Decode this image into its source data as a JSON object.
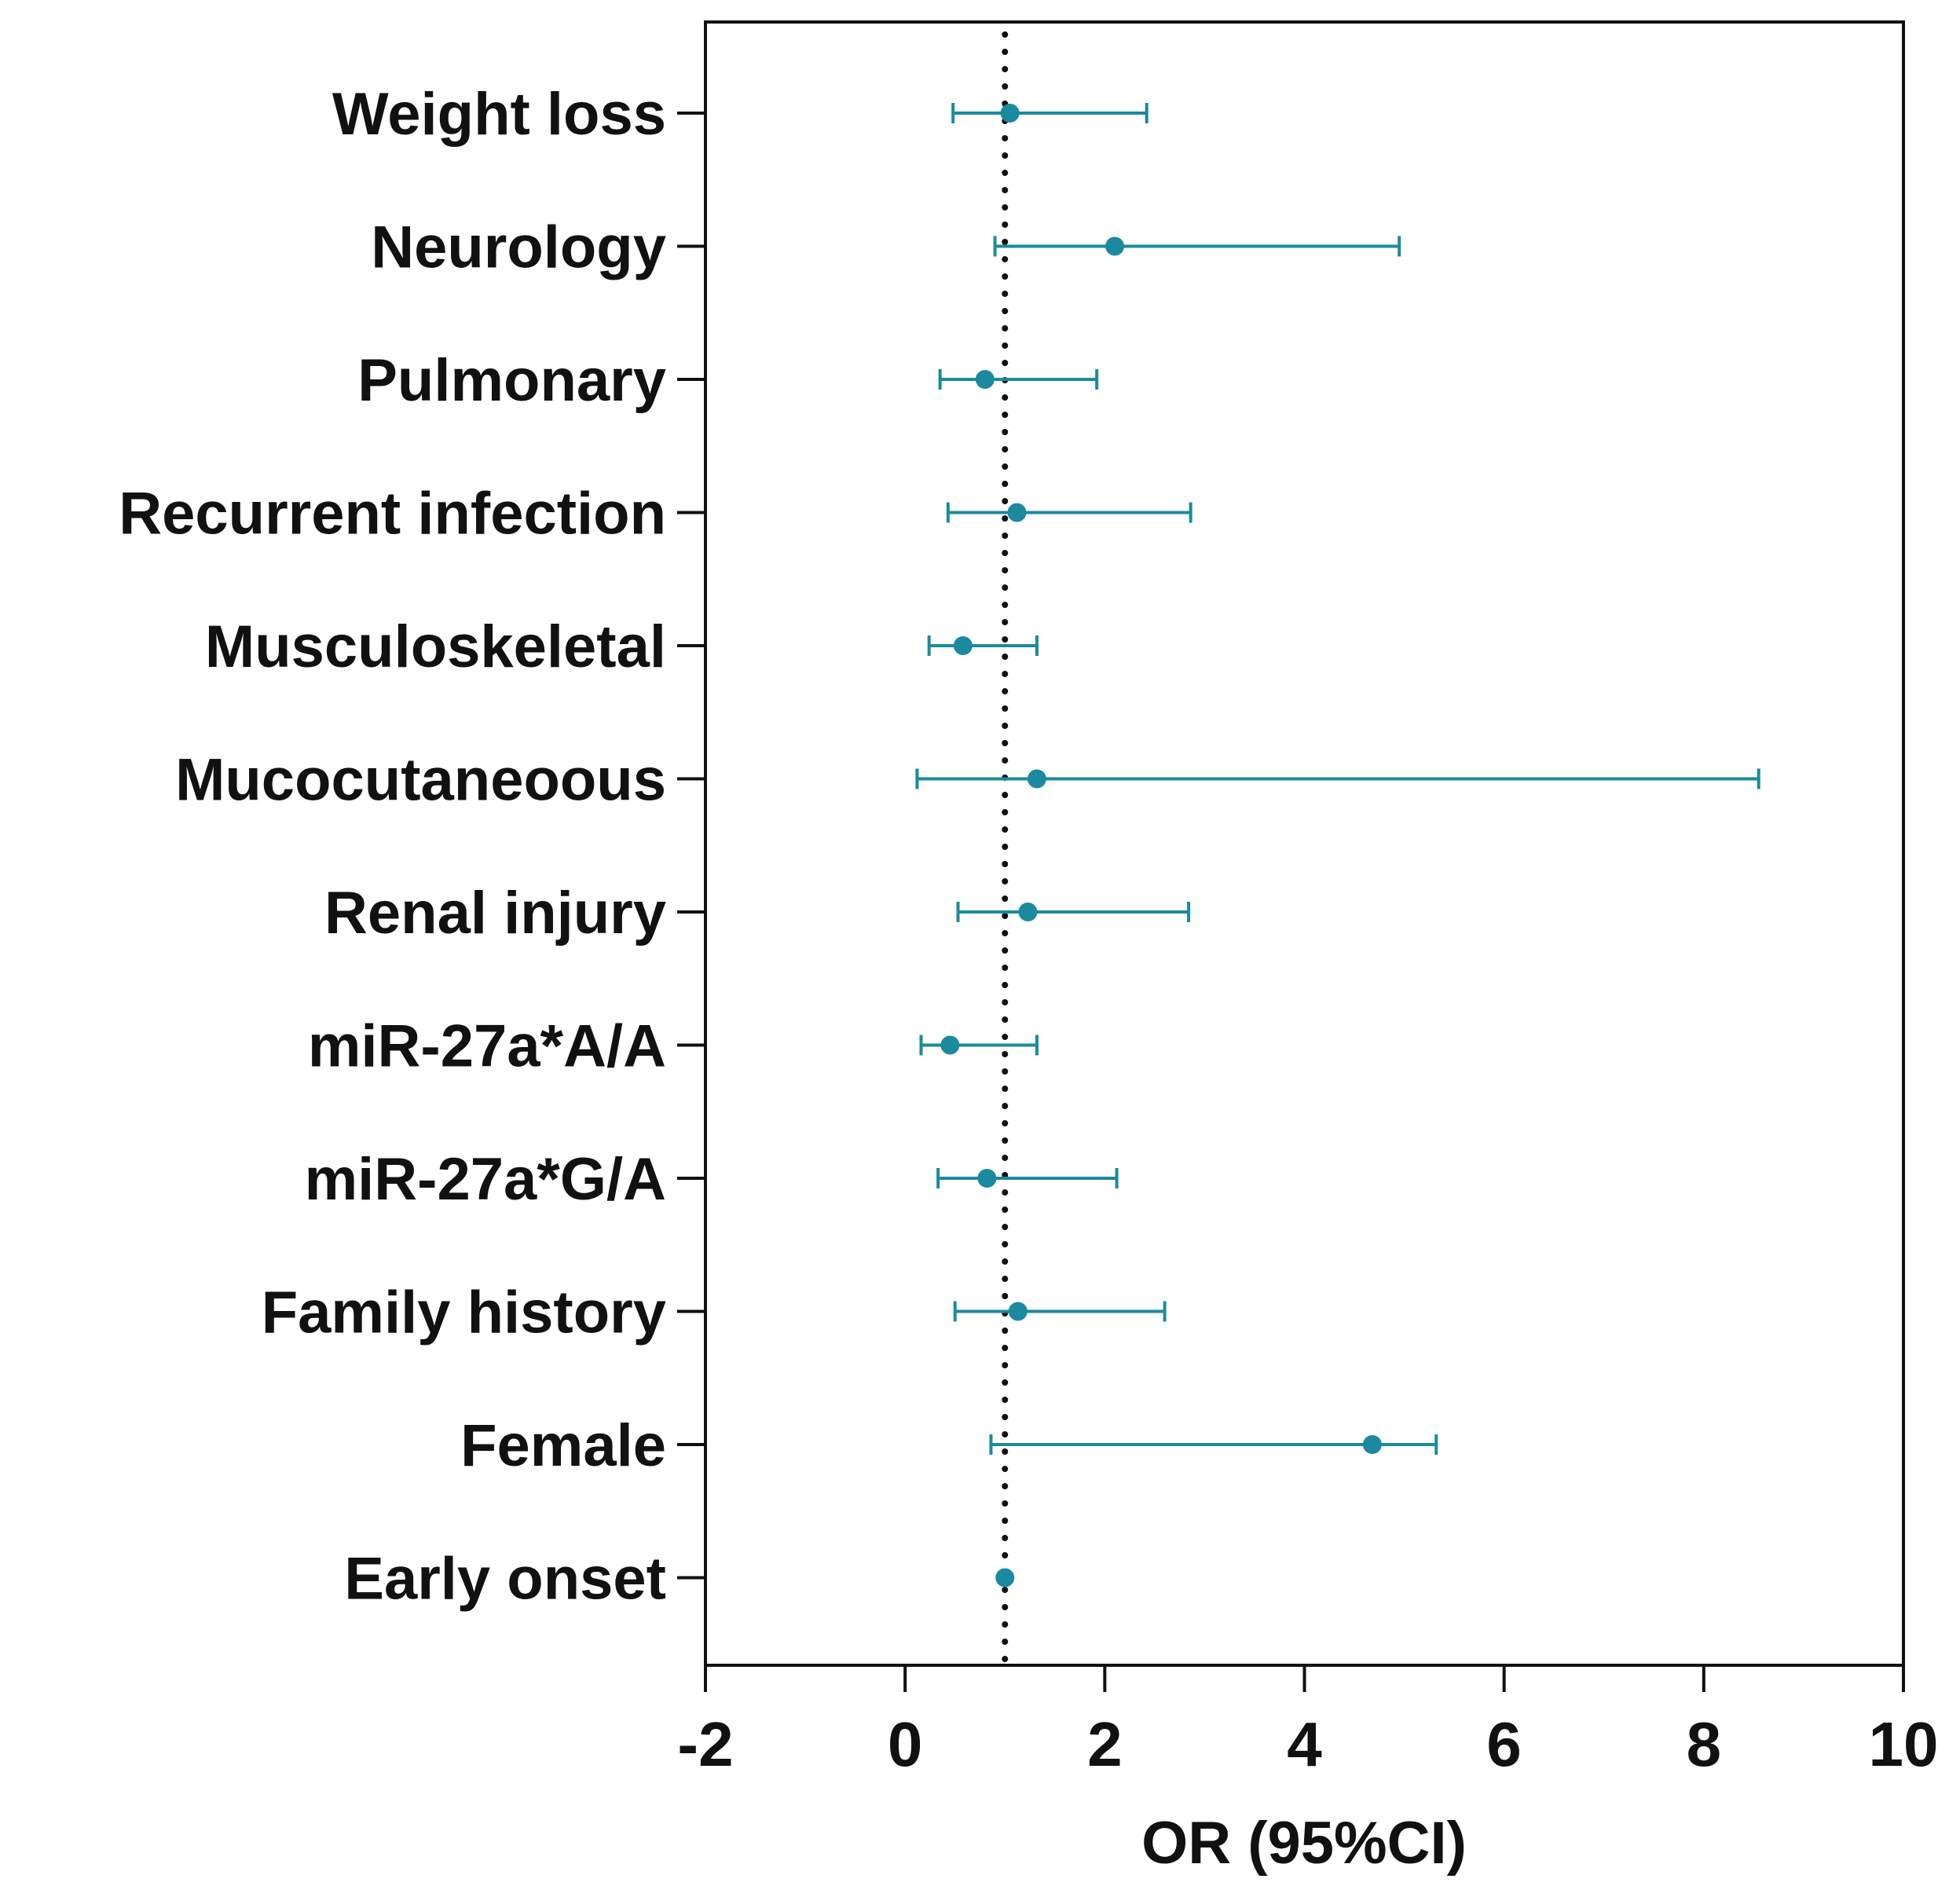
{
  "chart_data": {
    "type": "forest",
    "title": "",
    "xlabel": "OR (95%CI)",
    "ylabel": "",
    "xlim": [
      -2,
      10
    ],
    "xticks": [
      -2,
      0,
      2,
      4,
      6,
      8,
      10
    ],
    "xtick_labels": [
      "-2",
      "0",
      "2",
      "4",
      "6",
      "8",
      "10"
    ],
    "reference_line": 1,
    "grid": false,
    "colors": {
      "marker": "#1b8a9e",
      "axis": "#111111",
      "reference": "#111111"
    },
    "rows": [
      {
        "label": "Weight loss",
        "or": 1.05,
        "lower": 0.48,
        "upper": 2.42
      },
      {
        "label": "Neurology",
        "or": 2.1,
        "lower": 0.9,
        "upper": 4.95
      },
      {
        "label": "Pulmonary",
        "or": 0.8,
        "lower": 0.35,
        "upper": 1.92
      },
      {
        "label": "Recurrent infection",
        "or": 1.12,
        "lower": 0.43,
        "upper": 2.86
      },
      {
        "label": "Musculoskeletal",
        "or": 0.58,
        "lower": 0.24,
        "upper": 1.32
      },
      {
        "label": "Mucocutaneoous",
        "or": 1.32,
        "lower": 0.12,
        "upper": 8.55
      },
      {
        "label": "Renal injury",
        "or": 1.23,
        "lower": 0.53,
        "upper": 2.84
      },
      {
        "label": "miR-27a*A/A",
        "or": 0.45,
        "lower": 0.16,
        "upper": 1.32
      },
      {
        "label": "miR-27a*G/A",
        "or": 0.82,
        "lower": 0.33,
        "upper": 2.12
      },
      {
        "label": "Family history",
        "or": 1.13,
        "lower": 0.5,
        "upper": 2.6
      },
      {
        "label": "Female",
        "or": 4.68,
        "lower": 0.86,
        "upper": 5.32
      },
      {
        "label": "Early onset",
        "or": 1.0,
        "lower": null,
        "upper": null
      }
    ]
  }
}
